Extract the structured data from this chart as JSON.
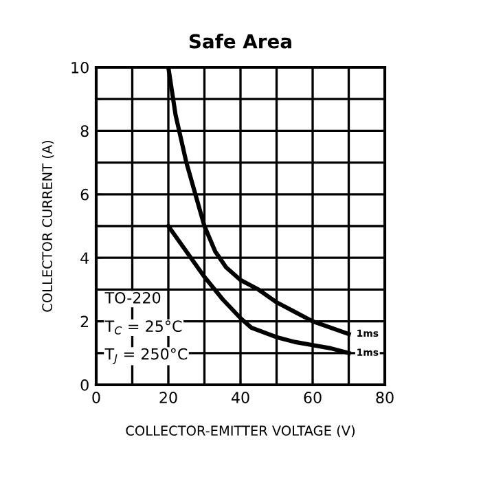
{
  "chart_data": {
    "type": "line",
    "title": "Safe Area",
    "xlabel": "COLLECTOR-EMITTER VOLTAGE (V)",
    "ylabel": "COLLECTOR CURRENT (A)",
    "series": [
      {
        "color": "#000000",
        "x": [
          20,
          22,
          25,
          28,
          30,
          33,
          36,
          40,
          45,
          50,
          55,
          60,
          65,
          70
        ],
        "values": [
          10,
          8.5,
          7,
          5.8,
          5,
          4.2,
          3.7,
          3.3,
          3.0,
          2.6,
          2.3,
          2.0,
          1.8,
          1.6
        ]
      },
      {
        "color": "#000000",
        "x": [
          20,
          25,
          30,
          35,
          40,
          43,
          50,
          55,
          60,
          65,
          70
        ],
        "values": [
          5,
          4.2,
          3.4,
          2.7,
          2.1,
          1.8,
          1.5,
          1.35,
          1.25,
          1.15,
          1.0
        ]
      }
    ],
    "xlim": [
      0,
      80
    ],
    "xticks": [
      0,
      {
        "value": 10,
        "label": null
      },
      20,
      {
        "value": 30,
        "label": null
      },
      40,
      {
        "value": 50,
        "label": null
      },
      60,
      {
        "value": 70,
        "label": null
      },
      80
    ],
    "ylim": [
      0,
      10
    ],
    "yticks": [
      0,
      {
        "value": 1,
        "label": null
      },
      2,
      {
        "value": 3,
        "label": null
      },
      4,
      {
        "value": 5,
        "label": null
      },
      6,
      {
        "value": 7,
        "label": null
      },
      8,
      {
        "value": 9,
        "label": null
      },
      10
    ],
    "grid": true,
    "marker": "none",
    "line_style": "solid",
    "annotations": [
      {
        "text": "1ms",
        "x": 70,
        "y": 1.6
      },
      {
        "text": "1ms",
        "x": 70,
        "y": 1.0
      },
      "TO-220",
      "T$_{C}$ = 25°C",
      "T$_{J}$ = 250°C"
    ]
  }
}
